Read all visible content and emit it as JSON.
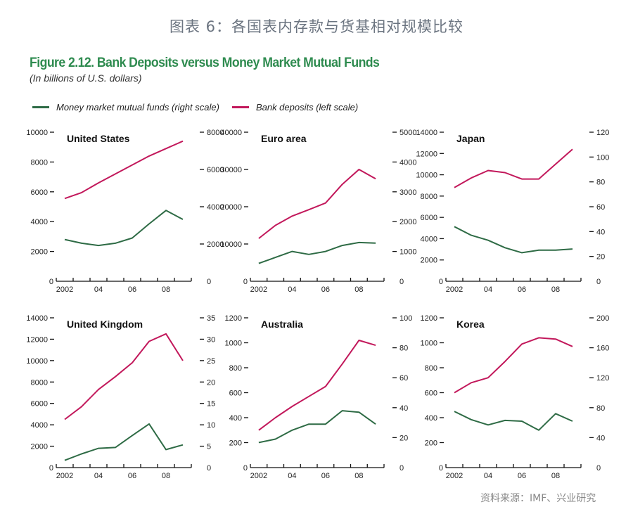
{
  "header": {
    "cn_title": "图表 6：各国表内存款与货基相对规模比较",
    "figure_title": "Figure 2.12. Bank Deposits versus Money Market Mutual Funds",
    "subtitle": "(In billions of U.S. dollars)"
  },
  "legend": [
    {
      "label": "Money market mutual funds (right scale)",
      "color": "#2e6b45"
    },
    {
      "label": "Bank deposits (left scale)",
      "color": "#c2185b"
    }
  ],
  "source": "资料来源：IMF、兴业研究",
  "chart_data": [
    {
      "type": "line",
      "title": "United States",
      "x": [
        2002,
        2003,
        2004,
        2005,
        2006,
        2007,
        2008,
        2009
      ],
      "xtick_labels": [
        "2002",
        "04",
        "06",
        "08"
      ],
      "left_ylim": [
        0,
        10000
      ],
      "left_ticks": [
        0,
        2000,
        4000,
        6000,
        8000,
        10000
      ],
      "right_ylim": [
        0,
        8000
      ],
      "right_ticks": [
        0,
        2000,
        4000,
        6000,
        8000
      ],
      "series": [
        {
          "name": "Bank deposits (left scale)",
          "axis": "left",
          "values": [
            5550,
            5950,
            6600,
            7200,
            7800,
            8400,
            8900,
            9400
          ]
        },
        {
          "name": "Money market mutual funds (right scale)",
          "axis": "right",
          "values": [
            2240,
            2040,
            1920,
            2040,
            2320,
            3080,
            3800,
            3320
          ]
        }
      ]
    },
    {
      "type": "line",
      "title": "Euro area",
      "x": [
        2002,
        2003,
        2004,
        2005,
        2006,
        2007,
        2008,
        2009
      ],
      "xtick_labels": [
        "2002",
        "04",
        "06",
        "08"
      ],
      "left_ylim": [
        0,
        40000
      ],
      "left_ticks": [
        0,
        10000,
        20000,
        30000,
        40000
      ],
      "right_ylim": [
        0,
        5000
      ],
      "right_ticks": [
        0,
        1000,
        2000,
        3000,
        4000,
        5000
      ],
      "series": [
        {
          "name": "Bank deposits (left scale)",
          "axis": "left",
          "values": [
            11500,
            15000,
            17500,
            19200,
            21000,
            26000,
            30000,
            27500
          ]
        },
        {
          "name": "Money market mutual funds (right scale)",
          "axis": "right",
          "values": [
            600,
            800,
            1000,
            900,
            1000,
            1200,
            1300,
            1280
          ]
        }
      ]
    },
    {
      "type": "line",
      "title": "Japan",
      "x": [
        2002,
        2003,
        2004,
        2005,
        2006,
        2007,
        2008,
        2009
      ],
      "xtick_labels": [
        "2002",
        "04",
        "06",
        "08"
      ],
      "left_ylim": [
        0,
        14000
      ],
      "left_ticks": [
        0,
        2000,
        4000,
        6000,
        8000,
        10000,
        12000,
        14000
      ],
      "right_ylim": [
        0,
        120
      ],
      "right_ticks": [
        0,
        20,
        40,
        60,
        80,
        100,
        120
      ],
      "series": [
        {
          "name": "Bank deposits (left scale)",
          "axis": "left",
          "values": [
            8800,
            9700,
            10400,
            10200,
            9600,
            9600,
            11000,
            12400
          ]
        },
        {
          "name": "Money market mutual funds (right scale)",
          "axis": "right",
          "values": [
            44,
            37,
            33,
            27,
            23,
            25,
            25,
            26
          ]
        }
      ]
    },
    {
      "type": "line",
      "title": "United Kingdom",
      "x": [
        2002,
        2003,
        2004,
        2005,
        2006,
        2007,
        2008,
        2009
      ],
      "xtick_labels": [
        "2002",
        "04",
        "06",
        "08"
      ],
      "left_ylim": [
        0,
        14000
      ],
      "left_ticks": [
        0,
        2000,
        4000,
        6000,
        8000,
        10000,
        12000,
        14000
      ],
      "right_ylim": [
        0,
        35
      ],
      "right_ticks": [
        0,
        5,
        10,
        15,
        20,
        25,
        30,
        35
      ],
      "series": [
        {
          "name": "Bank deposits (left scale)",
          "axis": "left",
          "values": [
            4500,
            5700,
            7300,
            8500,
            9800,
            11800,
            12500,
            10000
          ]
        },
        {
          "name": "Money market mutual funds (right scale)",
          "axis": "right",
          "values": [
            1.7,
            3.2,
            4.5,
            4.7,
            7.5,
            10.2,
            4.2,
            5.3
          ]
        }
      ]
    },
    {
      "type": "line",
      "title": "Australia",
      "x": [
        2002,
        2003,
        2004,
        2005,
        2006,
        2007,
        2008,
        2009
      ],
      "xtick_labels": [
        "2002",
        "04",
        "06",
        "08"
      ],
      "left_ylim": [
        0,
        1200
      ],
      "left_ticks": [
        0,
        200,
        400,
        600,
        800,
        1000,
        1200
      ],
      "right_ylim": [
        0,
        100
      ],
      "right_ticks": [
        0,
        20,
        40,
        60,
        80,
        100
      ],
      "series": [
        {
          "name": "Bank deposits (left scale)",
          "axis": "left",
          "values": [
            300,
            400,
            490,
            570,
            650,
            830,
            1020,
            980
          ]
        },
        {
          "name": "Money market mutual funds (right scale)",
          "axis": "right",
          "values": [
            16.7,
            19,
            25,
            29,
            29,
            38,
            37,
            29
          ]
        }
      ]
    },
    {
      "type": "line",
      "title": "Korea",
      "x": [
        2002,
        2003,
        2004,
        2005,
        2006,
        2007,
        2008,
        2009
      ],
      "xtick_labels": [
        "2002",
        "04",
        "06",
        "08"
      ],
      "left_ylim": [
        0,
        1200
      ],
      "left_ticks": [
        0,
        200,
        400,
        600,
        800,
        1000,
        1200
      ],
      "right_ylim": [
        0,
        200
      ],
      "right_ticks": [
        0,
        40,
        80,
        120,
        160,
        200
      ],
      "series": [
        {
          "name": "Bank deposits (left scale)",
          "axis": "left",
          "values": [
            600,
            680,
            720,
            850,
            990,
            1040,
            1030,
            970
          ]
        },
        {
          "name": "Money market mutual funds (right scale)",
          "axis": "right",
          "values": [
            75,
            64,
            57,
            63,
            62,
            50,
            72,
            62
          ]
        }
      ]
    }
  ]
}
